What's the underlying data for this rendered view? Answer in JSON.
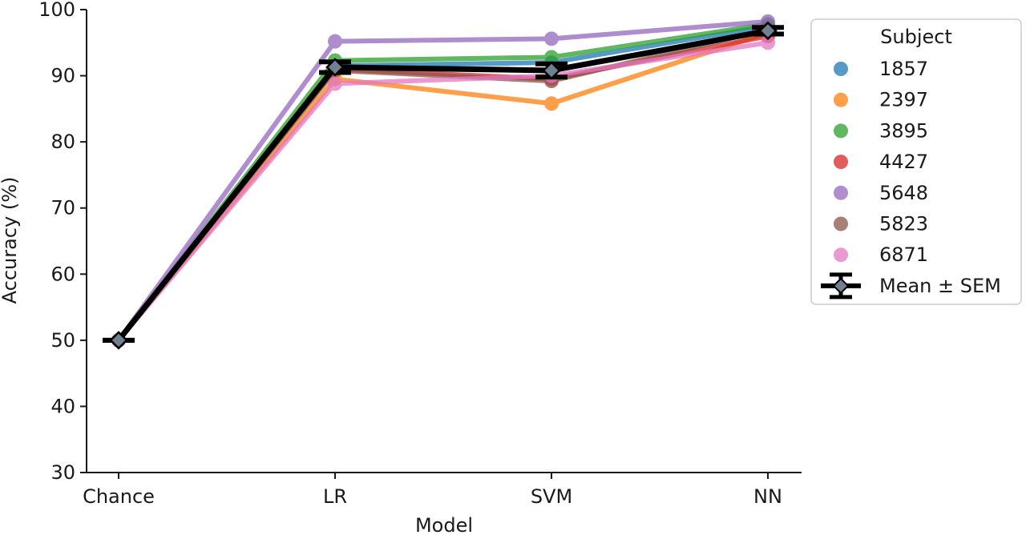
{
  "chart_data": {
    "type": "line",
    "xlabel": "Model",
    "ylabel": "Accuracy (%)",
    "categories": [
      "Chance",
      "LR",
      "SVM",
      "NN"
    ],
    "ylim": [
      30,
      100
    ],
    "yticks": [
      30,
      40,
      50,
      60,
      70,
      80,
      90,
      100
    ],
    "grid": false,
    "legend": {
      "title": "Subject",
      "placement": "right"
    },
    "series": [
      {
        "name": "1857",
        "color": "#1f77b4",
        "values": [
          50,
          91.5,
          92.0,
          97.5
        ]
      },
      {
        "name": "2397",
        "color": "#ff7f0e",
        "values": [
          50,
          89.5,
          85.8,
          96.5
        ]
      },
      {
        "name": "3895",
        "color": "#2ca02c",
        "values": [
          50,
          92.3,
          92.8,
          97.8
        ]
      },
      {
        "name": "4427",
        "color": "#d62728",
        "values": [
          50,
          91.0,
          89.5,
          96.0
        ]
      },
      {
        "name": "5648",
        "color": "#9467bd",
        "values": [
          50,
          95.2,
          95.6,
          98.2
        ]
      },
      {
        "name": "5823",
        "color": "#8c564b",
        "values": [
          50,
          90.8,
          89.2,
          97.0
        ]
      },
      {
        "name": "6871",
        "color": "#e377c2",
        "values": [
          50,
          88.8,
          90.0,
          95.0
        ]
      }
    ],
    "mean": {
      "name": "Mean ± SEM",
      "values": [
        50,
        91.3,
        90.8,
        96.8
      ],
      "sem": [
        0,
        0.8,
        1.0,
        0.5
      ]
    }
  }
}
